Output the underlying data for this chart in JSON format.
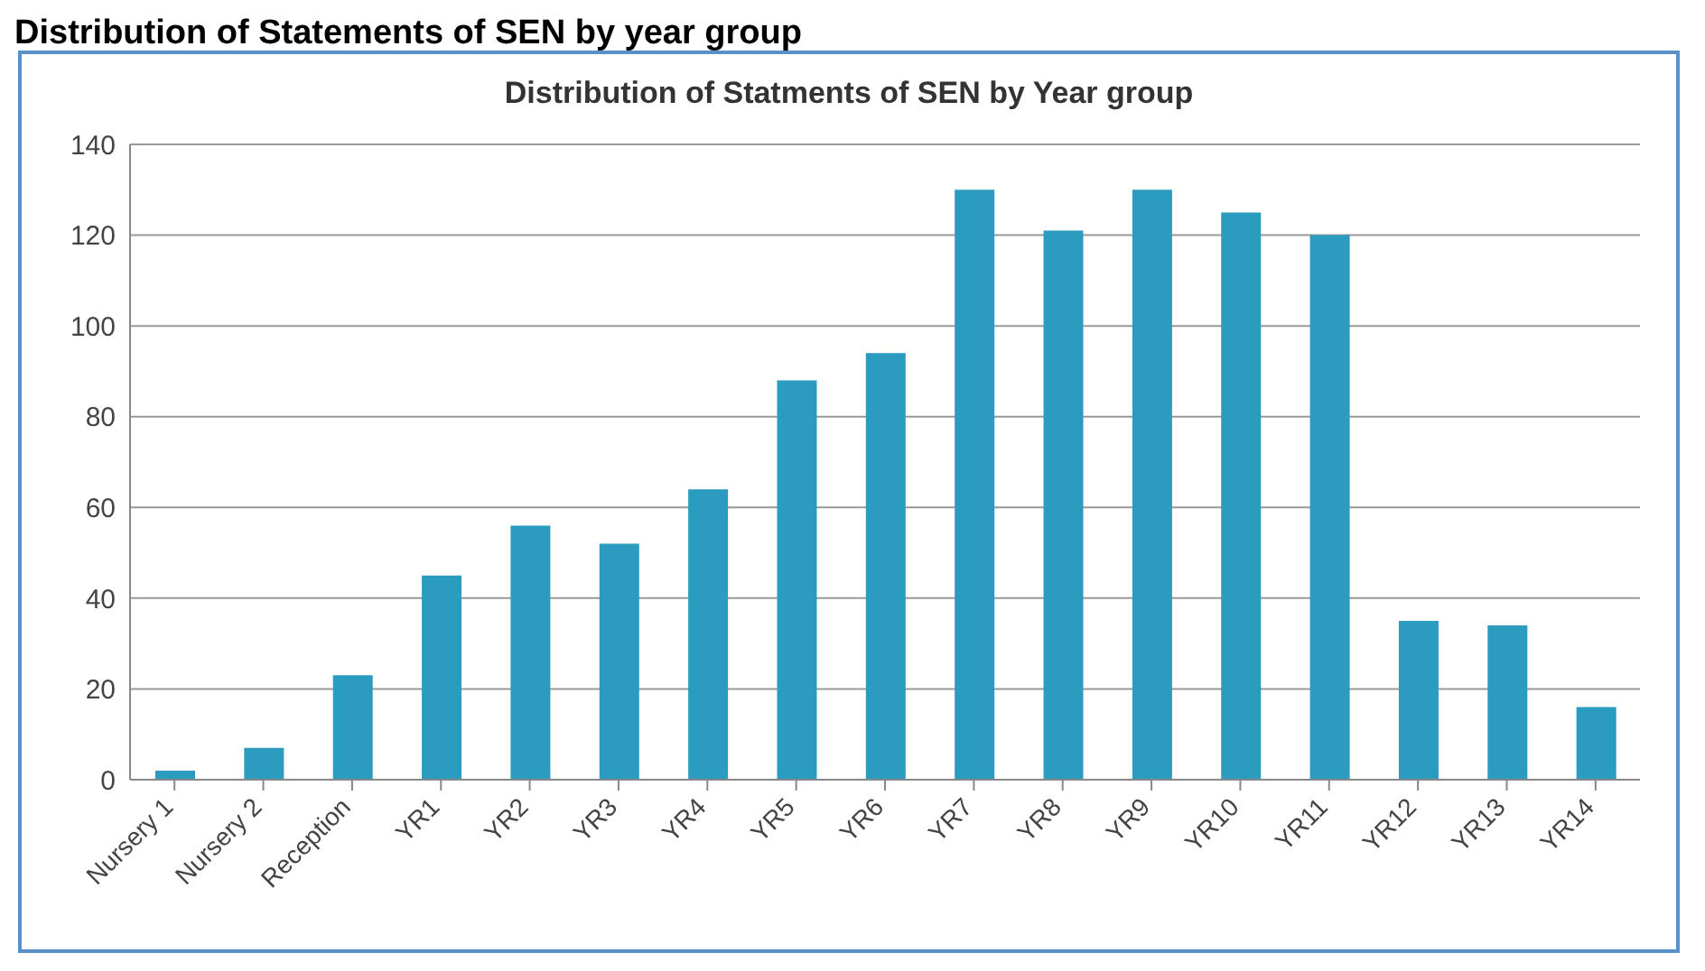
{
  "chart_data": {
    "type": "bar",
    "title": "Distribution of Statements of SEN by year group",
    "subtitle": "Distribution of Statments of SEN by Year group",
    "categories": [
      "Nursery 1",
      "Nursery 2",
      "Reception",
      "YR1",
      "YR2",
      "YR3",
      "YR4",
      "YR5",
      "YR6",
      "YR7",
      "YR8",
      "YR9",
      "YR10",
      "YR11",
      "YR12",
      "YR13",
      "YR14"
    ],
    "values": [
      2,
      7,
      23,
      45,
      56,
      52,
      64,
      88,
      94,
      130,
      121,
      130,
      125,
      120,
      35,
      34,
      16
    ],
    "color": "#2b9bbf",
    "ylim": [
      0,
      140
    ],
    "yticks": [
      0,
      20,
      40,
      60,
      80,
      100,
      120,
      140
    ],
    "grid": "y"
  }
}
